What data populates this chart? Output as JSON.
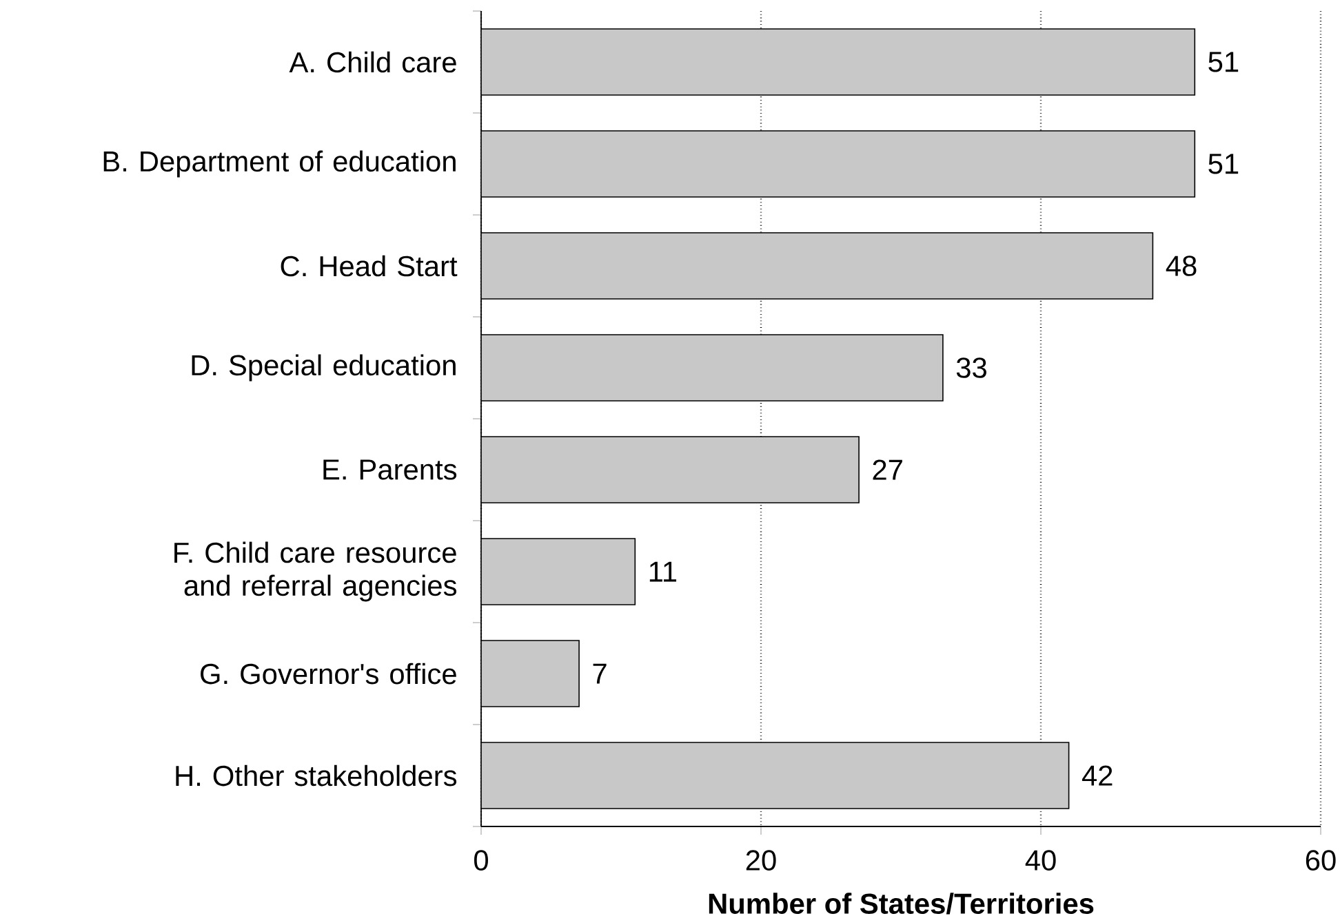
{
  "chart_data": {
    "type": "bar",
    "orientation": "horizontal",
    "categories": [
      "A. Child care",
      "B. Department of education",
      "C. Head Start",
      "D. Special education",
      "E. Parents",
      "F. Child care resource and referral agencies",
      "G. Governor's office",
      "H. Other stakeholders"
    ],
    "values": [
      51,
      51,
      48,
      33,
      27,
      11,
      7,
      42
    ],
    "color": "#c8c8c8",
    "xlim": [
      0,
      60
    ],
    "xticks": [
      0,
      20,
      40,
      60
    ],
    "xlabel": "Number of States/Territories",
    "grid": "x",
    "data_labels": true
  }
}
